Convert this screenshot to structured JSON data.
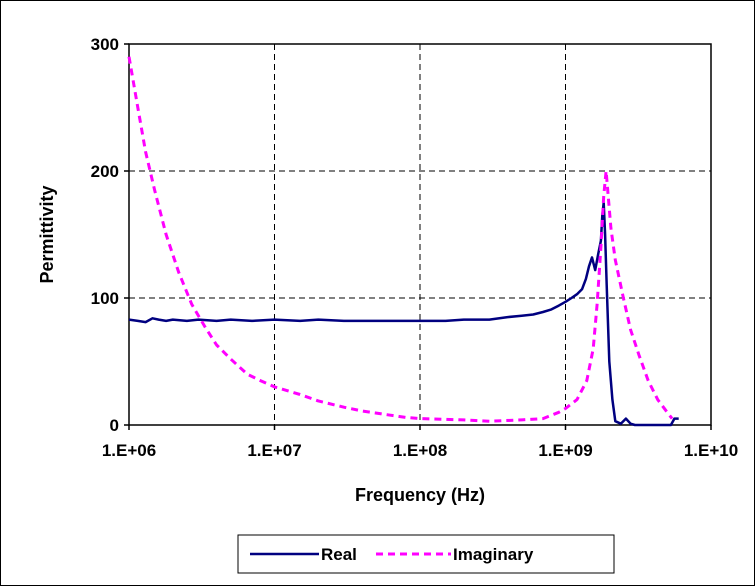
{
  "chart_data": {
    "type": "line",
    "title": "",
    "xlabel": "Frequency (Hz)",
    "ylabel": "Permittivity",
    "x_scale": "log",
    "xlim": [
      1000000,
      10000000000
    ],
    "ylim": [
      0,
      300
    ],
    "x_ticks": [
      {
        "value": 1000000,
        "label": "1.E+06"
      },
      {
        "value": 10000000,
        "label": "1.E+07"
      },
      {
        "value": 100000000,
        "label": "1.E+08"
      },
      {
        "value": 1000000000,
        "label": "1.E+09"
      },
      {
        "value": 10000000000,
        "label": "1.E+10"
      }
    ],
    "y_ticks": [
      {
        "value": 0,
        "label": "0"
      },
      {
        "value": 100,
        "label": "100"
      },
      {
        "value": 200,
        "label": "200"
      },
      {
        "value": 300,
        "label": "300"
      }
    ],
    "grid": true,
    "legend_position": "bottom",
    "series": [
      {
        "name": "Real",
        "color": "#000080",
        "style": "solid",
        "x": [
          1000000,
          1150000,
          1300000,
          1450000,
          1600000,
          1800000,
          2000000,
          2500000,
          3000000,
          4000000,
          5000000,
          7000000,
          10000000,
          15000000,
          20000000,
          30000000,
          50000000,
          70000000,
          100000000,
          150000000,
          200000000,
          300000000,
          400000000,
          500000000,
          600000000,
          700000000,
          800000000,
          900000000,
          1000000000,
          1100000000,
          1200000000,
          1300000000,
          1380000000,
          1450000000,
          1520000000,
          1600000000,
          1680000000,
          1750000000,
          1790000000,
          1830000000,
          1870000000,
          1920000000,
          2000000000,
          2100000000,
          2200000000,
          2400000000,
          2600000000,
          2800000000,
          3000000000,
          4000000000,
          5000000000,
          5300000000,
          5600000000,
          6000000000
        ],
        "y": [
          83,
          82,
          81,
          84,
          83,
          82,
          83,
          82,
          83,
          82,
          83,
          82,
          83,
          82,
          83,
          82,
          82,
          82,
          82,
          82,
          83,
          83,
          85,
          86,
          87,
          89,
          91,
          94,
          97,
          100,
          103,
          107,
          115,
          125,
          132,
          122,
          135,
          145,
          165,
          175,
          150,
          110,
          50,
          20,
          3,
          1,
          5,
          1,
          0,
          0,
          0,
          0,
          5,
          5
        ]
      },
      {
        "name": "Imaginary",
        "color": "#ff00ff",
        "style": "dashed",
        "x": [
          1000000,
          1150000,
          1300000,
          1500000,
          1800000,
          2200000,
          2700000,
          3300000,
          4000000,
          5000000,
          6500000,
          8000000,
          10000000,
          15000000,
          20000000,
          30000000,
          40000000,
          60000000,
          80000000,
          100000000,
          200000000,
          300000000,
          500000000,
          700000000,
          900000000,
          1000000000,
          1200000000,
          1400000000,
          1550000000,
          1650000000,
          1750000000,
          1830000000,
          1900000000,
          1950000000,
          2050000000,
          2200000000,
          2500000000,
          2800000000,
          3200000000,
          3700000000,
          4300000000,
          5000000000,
          5400000000
        ],
        "y": [
          290,
          250,
          215,
          185,
          150,
          120,
          95,
          78,
          63,
          52,
          40,
          35,
          30,
          24,
          19,
          14,
          11,
          8,
          6,
          5,
          4,
          3,
          4,
          5,
          10,
          13,
          20,
          35,
          60,
          95,
          140,
          180,
          200,
          185,
          155,
          130,
          100,
          75,
          55,
          35,
          20,
          10,
          5
        ]
      }
    ]
  }
}
